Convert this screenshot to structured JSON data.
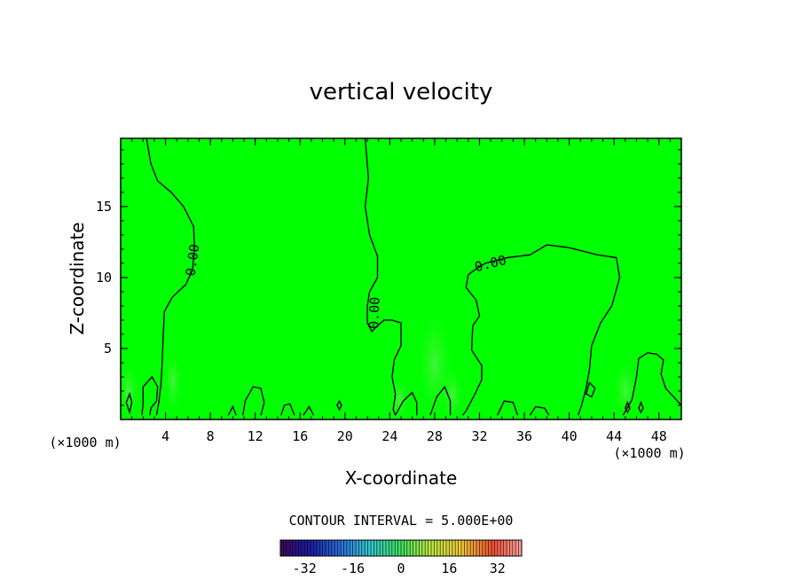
{
  "chart_data": {
    "type": "heatmap",
    "title": "vertical velocity",
    "xlabel": "X-coordinate",
    "ylabel": "Z-coordinate",
    "x_unit_left": "(×1000 m)",
    "x_unit_right": "(×1000 m)",
    "xlim": [
      0,
      50
    ],
    "ylim": [
      0,
      19.8
    ],
    "x_ticks": [
      4,
      8,
      12,
      16,
      20,
      24,
      28,
      32,
      36,
      40,
      44,
      48
    ],
    "y_ticks": [
      5,
      10,
      15
    ],
    "contour_label": "0.00",
    "contour_interval_text": "CONTOUR INTERVAL =  5.000E+00",
    "colorbar": {
      "min": -40,
      "max": 40,
      "ticks": [
        -32,
        -16,
        0,
        16,
        32
      ]
    },
    "field_color": "#00ff00",
    "contours": [
      [
        [
          2.3,
          19.8
        ],
        [
          2.7,
          18
        ],
        [
          3.3,
          16.8
        ],
        [
          4.5,
          16
        ],
        [
          5.6,
          15
        ],
        [
          6.5,
          13.6
        ],
        [
          6.6,
          12
        ],
        [
          6.4,
          10.5
        ],
        [
          5.8,
          9.5
        ],
        [
          4.6,
          8.6
        ],
        [
          3.9,
          7.6
        ],
        [
          3.8,
          6
        ],
        [
          3.7,
          4
        ],
        [
          3.6,
          2.5
        ],
        [
          3.4,
          1.2
        ],
        [
          3.2,
          0.3
        ]
      ],
      [
        [
          21.8,
          19.8
        ],
        [
          22.1,
          17
        ],
        [
          21.8,
          15
        ],
        [
          22.2,
          13
        ],
        [
          22.9,
          11.5
        ],
        [
          22.9,
          10
        ],
        [
          22.2,
          9
        ],
        [
          22.0,
          8
        ],
        [
          22.0,
          6.8
        ],
        [
          22.4,
          6.2
        ],
        [
          22.9,
          6.6
        ],
        [
          23.5,
          7.0
        ],
        [
          24.2,
          7.0
        ],
        [
          25.0,
          6.8
        ],
        [
          25.0,
          5.2
        ],
        [
          24.4,
          4.2
        ],
        [
          24.2,
          3.0
        ],
        [
          24.5,
          1.8
        ],
        [
          24.3,
          0.7
        ],
        [
          24.5,
          0.3
        ]
      ],
      [
        [
          31.0,
          10.2
        ],
        [
          31.7,
          10.6
        ],
        [
          32.5,
          11.0
        ],
        [
          34.5,
          11.4
        ],
        [
          36.5,
          11.6
        ],
        [
          38.0,
          12.3
        ],
        [
          40.0,
          12.1
        ],
        [
          42.5,
          11.6
        ],
        [
          44.2,
          11.4
        ],
        [
          44.5,
          10
        ],
        [
          43.8,
          8.0
        ],
        [
          42.8,
          6.8
        ],
        [
          42.0,
          5.2
        ],
        [
          41.8,
          3.5
        ],
        [
          41.5,
          2.2
        ],
        [
          41.1,
          1.0
        ],
        [
          40.8,
          0.3
        ]
      ],
      [
        [
          31.0,
          10.2
        ],
        [
          30.8,
          9.3
        ],
        [
          31.7,
          8.4
        ],
        [
          32.0,
          7.3
        ],
        [
          31.4,
          6.6
        ],
        [
          31.3,
          4.9
        ],
        [
          32.2,
          3.8
        ],
        [
          32.2,
          2.8
        ],
        [
          31.6,
          1.8
        ],
        [
          30.8,
          0.6
        ],
        [
          30.5,
          0.3
        ]
      ],
      [
        [
          44.8,
          0.3
        ],
        [
          45.6,
          1.4
        ],
        [
          46.0,
          3.0
        ],
        [
          46.2,
          4.3
        ],
        [
          47.0,
          4.7
        ],
        [
          47.8,
          4.6
        ],
        [
          48.4,
          4.2
        ],
        [
          48.2,
          3.2
        ],
        [
          48.6,
          2.2
        ],
        [
          49.3,
          1.6
        ],
        [
          50,
          1.0
        ]
      ],
      [
        [
          1.9,
          0.3
        ],
        [
          2.0,
          1.2
        ],
        [
          2.0,
          2.3
        ],
        [
          2.8,
          3.0
        ],
        [
          3.3,
          2.3
        ],
        [
          3.2,
          1.3
        ],
        [
          2.7,
          0.8
        ],
        [
          2.6,
          0.3
        ]
      ],
      [
        [
          10.9,
          0.3
        ],
        [
          11.1,
          1.3
        ],
        [
          11.8,
          2.3
        ],
        [
          12.5,
          2.2
        ],
        [
          12.8,
          1.2
        ],
        [
          12.6,
          0.6
        ],
        [
          12.5,
          0.3
        ]
      ],
      [
        [
          24.5,
          0.3
        ],
        [
          25.2,
          1.3
        ],
        [
          26.0,
          1.9
        ],
        [
          26.4,
          1.2
        ],
        [
          26.4,
          0.3
        ]
      ],
      [
        [
          27.6,
          0.3
        ],
        [
          28.2,
          1.6
        ],
        [
          28.9,
          2.3
        ],
        [
          29.4,
          1.3
        ],
        [
          29.4,
          0.3
        ]
      ],
      [
        [
          33.6,
          0.3
        ],
        [
          34.2,
          1.3
        ],
        [
          35.0,
          1.2
        ],
        [
          35.4,
          0.3
        ]
      ],
      [
        [
          36.5,
          0.3
        ],
        [
          37.0,
          0.9
        ],
        [
          37.8,
          0.8
        ],
        [
          38.2,
          0.3
        ]
      ],
      [
        [
          9.6,
          0.3
        ],
        [
          10.0,
          0.9
        ],
        [
          10.3,
          0.3
        ]
      ],
      [
        [
          14.3,
          0.3
        ],
        [
          14.6,
          1.0
        ],
        [
          15.1,
          1.1
        ],
        [
          15.5,
          0.3
        ]
      ],
      [
        [
          16.3,
          0.3
        ],
        [
          16.8,
          0.9
        ],
        [
          17.2,
          0.3
        ]
      ]
    ],
    "closed_contours": [
      [
        [
          0.5,
          1.2
        ],
        [
          0.8,
          1.8
        ],
        [
          1.0,
          1.2
        ],
        [
          0.8,
          0.5
        ]
      ],
      [
        [
          41.5,
          1.8
        ],
        [
          41.8,
          2.6
        ],
        [
          42.3,
          2.2
        ],
        [
          42.0,
          1.6
        ]
      ],
      [
        [
          19.3,
          1.0
        ],
        [
          19.5,
          1.3
        ],
        [
          19.7,
          1.0
        ],
        [
          19.5,
          0.7
        ]
      ],
      [
        [
          45.0,
          0.8
        ],
        [
          45.2,
          1.2
        ],
        [
          45.4,
          0.8
        ],
        [
          45.2,
          0.5
        ]
      ],
      [
        [
          46.2,
          0.8
        ],
        [
          46.4,
          1.2
        ],
        [
          46.6,
          0.8
        ],
        [
          46.4,
          0.5
        ]
      ]
    ]
  }
}
